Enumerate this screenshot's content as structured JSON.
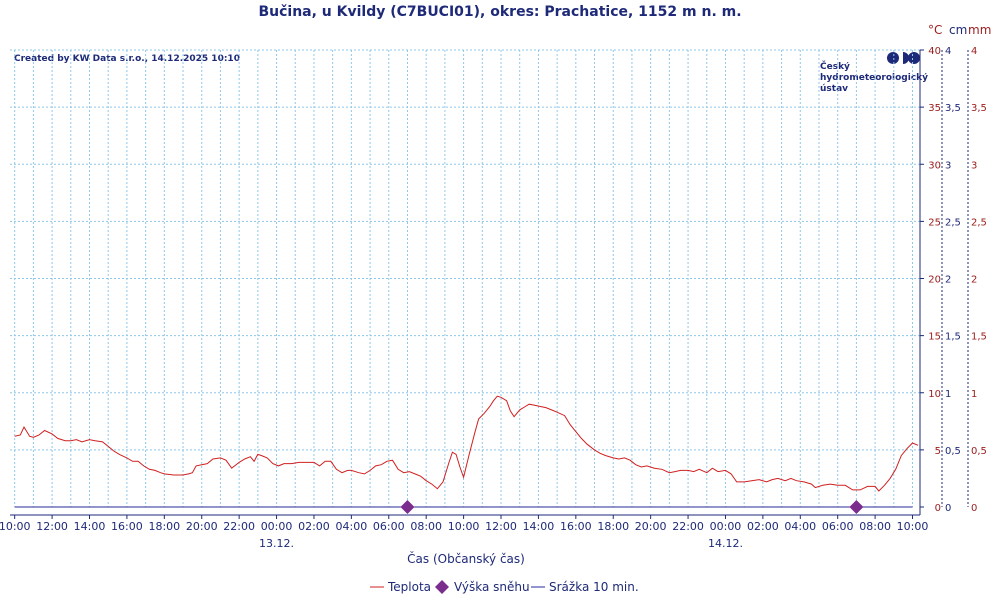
{
  "header": {
    "title": "Bučina, u Kvildy (C7BUCI01), okres: Prachatice, 1152 m n. m.",
    "credit": "Created by KW Data s.r.o., 14.12.2025 10:10"
  },
  "logo": {
    "lines": [
      "Český",
      "hydrometeorologický",
      "ústav"
    ],
    "color": "#1e2a78"
  },
  "colors": {
    "temperature": "#d02020",
    "snow": "#7b2d8e",
    "precip": "#2a2a9a",
    "grid": "#8fc8e8",
    "axis": "#1e2a78",
    "right_axis_text": "#9b1b1b"
  },
  "chart_data": {
    "type": "line",
    "title": "Bučina, u Kvildy (C7BUCI01), okres: Prachatice, 1152 m n. m.",
    "xlabel": "Čas (Občanský čas)",
    "x_range_hours": [
      -0.25,
      48.4
    ],
    "x_ticks": [
      {
        "h": 0,
        "label": "10:00"
      },
      {
        "h": 2,
        "label": "12:00"
      },
      {
        "h": 4,
        "label": "14:00"
      },
      {
        "h": 6,
        "label": "16:00"
      },
      {
        "h": 8,
        "label": "18:00"
      },
      {
        "h": 10,
        "label": "20:00"
      },
      {
        "h": 12,
        "label": "22:00"
      },
      {
        "h": 14,
        "label": "00:00"
      },
      {
        "h": 16,
        "label": "02:00"
      },
      {
        "h": 18,
        "label": "04:00"
      },
      {
        "h": 20,
        "label": "06:00"
      },
      {
        "h": 22,
        "label": "08:00"
      },
      {
        "h": 24,
        "label": "10:00"
      },
      {
        "h": 26,
        "label": "12:00"
      },
      {
        "h": 28,
        "label": "14:00"
      },
      {
        "h": 30,
        "label": "16:00"
      },
      {
        "h": 32,
        "label": "18:00"
      },
      {
        "h": 34,
        "label": "20:00"
      },
      {
        "h": 36,
        "label": "22:00"
      },
      {
        "h": 38,
        "label": "00:00"
      },
      {
        "h": 40,
        "label": "02:00"
      },
      {
        "h": 42,
        "label": "04:00"
      },
      {
        "h": 44,
        "label": "06:00"
      },
      {
        "h": 46,
        "label": "08:00"
      },
      {
        "h": 48,
        "label": "10:00"
      }
    ],
    "date_labels": [
      {
        "h": 14,
        "label": "13.12."
      },
      {
        "h": 38,
        "label": "14.12."
      }
    ],
    "y_axes": {
      "temperature": {
        "unit": "°C",
        "ticks": [
          "0",
          "5",
          "10",
          "15",
          "20",
          "25",
          "30",
          "35",
          "40"
        ],
        "range": [
          0,
          40
        ]
      },
      "snow": {
        "unit": "cm",
        "ticks": [
          "0",
          "0,5",
          "1",
          "1,5",
          "2",
          "2,5",
          "3",
          "3,5",
          "4"
        ],
        "range": [
          0,
          4
        ]
      },
      "precip": {
        "unit": "mm",
        "ticks": [
          "0",
          "0,5",
          "1",
          "1,5",
          "2",
          "2,5",
          "3",
          "3,5",
          "4"
        ],
        "range": [
          0,
          4
        ]
      }
    },
    "grid": true,
    "legend_position": "bottom-center",
    "series": [
      {
        "name": "Teplota",
        "kind": "line",
        "points": [
          [
            0.0,
            6.2
          ],
          [
            0.3,
            6.3
          ],
          [
            0.5,
            7.0
          ],
          [
            0.8,
            6.2
          ],
          [
            1.0,
            6.1
          ],
          [
            1.3,
            6.3
          ],
          [
            1.6,
            6.7
          ],
          [
            2.0,
            6.4
          ],
          [
            2.3,
            6.0
          ],
          [
            2.7,
            5.8
          ],
          [
            3.0,
            5.8
          ],
          [
            3.3,
            5.9
          ],
          [
            3.6,
            5.7
          ],
          [
            4.0,
            5.9
          ],
          [
            4.3,
            5.8
          ],
          [
            4.7,
            5.7
          ],
          [
            5.0,
            5.3
          ],
          [
            5.3,
            4.9
          ],
          [
            5.6,
            4.6
          ],
          [
            6.0,
            4.3
          ],
          [
            6.3,
            4.0
          ],
          [
            6.6,
            4.0
          ],
          [
            6.9,
            3.6
          ],
          [
            7.2,
            3.3
          ],
          [
            7.5,
            3.2
          ],
          [
            7.8,
            3.0
          ],
          [
            8.0,
            2.9
          ],
          [
            8.5,
            2.8
          ],
          [
            9.0,
            2.8
          ],
          [
            9.3,
            2.9
          ],
          [
            9.5,
            3.0
          ],
          [
            9.7,
            3.6
          ],
          [
            10.0,
            3.7
          ],
          [
            10.3,
            3.8
          ],
          [
            10.6,
            4.2
          ],
          [
            11.0,
            4.3
          ],
          [
            11.3,
            4.1
          ],
          [
            11.6,
            3.4
          ],
          [
            12.0,
            3.9
          ],
          [
            12.3,
            4.2
          ],
          [
            12.6,
            4.4
          ],
          [
            12.8,
            4.0
          ],
          [
            13.0,
            4.6
          ],
          [
            13.2,
            4.5
          ],
          [
            13.5,
            4.3
          ],
          [
            13.8,
            3.8
          ],
          [
            14.1,
            3.6
          ],
          [
            14.4,
            3.8
          ],
          [
            14.8,
            3.8
          ],
          [
            15.2,
            3.9
          ],
          [
            15.6,
            3.9
          ],
          [
            16.0,
            3.9
          ],
          [
            16.3,
            3.6
          ],
          [
            16.6,
            4.0
          ],
          [
            16.9,
            4.0
          ],
          [
            17.2,
            3.3
          ],
          [
            17.5,
            3.0
          ],
          [
            17.8,
            3.2
          ],
          [
            18.0,
            3.2
          ],
          [
            18.4,
            3.0
          ],
          [
            18.7,
            2.9
          ],
          [
            19.0,
            3.2
          ],
          [
            19.3,
            3.6
          ],
          [
            19.6,
            3.7
          ],
          [
            19.9,
            4.0
          ],
          [
            20.2,
            4.1
          ],
          [
            20.5,
            3.3
          ],
          [
            20.8,
            3.0
          ],
          [
            21.1,
            3.1
          ],
          [
            21.4,
            2.9
          ],
          [
            21.7,
            2.7
          ],
          [
            22.0,
            2.3
          ],
          [
            22.3,
            2.0
          ],
          [
            22.6,
            1.6
          ],
          [
            22.9,
            2.2
          ],
          [
            23.2,
            3.8
          ],
          [
            23.4,
            4.8
          ],
          [
            23.6,
            4.6
          ],
          [
            23.8,
            3.5
          ],
          [
            24.0,
            2.6
          ],
          [
            24.3,
            4.6
          ],
          [
            24.6,
            6.5
          ],
          [
            24.8,
            7.7
          ],
          [
            25.1,
            8.2
          ],
          [
            25.4,
            8.8
          ],
          [
            25.6,
            9.3
          ],
          [
            25.8,
            9.7
          ],
          [
            26.0,
            9.6
          ],
          [
            26.3,
            9.3
          ],
          [
            26.5,
            8.4
          ],
          [
            26.7,
            7.9
          ],
          [
            27.0,
            8.5
          ],
          [
            27.3,
            8.8
          ],
          [
            27.5,
            9.0
          ],
          [
            27.8,
            8.9
          ],
          [
            28.1,
            8.8
          ],
          [
            28.4,
            8.7
          ],
          [
            28.7,
            8.5
          ],
          [
            29.0,
            8.3
          ],
          [
            29.4,
            8.0
          ],
          [
            29.7,
            7.2
          ],
          [
            30.0,
            6.6
          ],
          [
            30.3,
            6.0
          ],
          [
            30.6,
            5.5
          ],
          [
            31.0,
            5.0
          ],
          [
            31.3,
            4.7
          ],
          [
            31.6,
            4.5
          ],
          [
            32.0,
            4.3
          ],
          [
            32.3,
            4.2
          ],
          [
            32.6,
            4.3
          ],
          [
            32.9,
            4.1
          ],
          [
            33.2,
            3.7
          ],
          [
            33.5,
            3.5
          ],
          [
            33.8,
            3.6
          ],
          [
            34.2,
            3.4
          ],
          [
            34.6,
            3.3
          ],
          [
            35.0,
            3.0
          ],
          [
            35.3,
            3.1
          ],
          [
            35.6,
            3.2
          ],
          [
            36.0,
            3.2
          ],
          [
            36.3,
            3.1
          ],
          [
            36.6,
            3.3
          ],
          [
            37.0,
            3.0
          ],
          [
            37.3,
            3.4
          ],
          [
            37.6,
            3.1
          ],
          [
            38.0,
            3.2
          ],
          [
            38.3,
            2.9
          ],
          [
            38.6,
            2.2
          ],
          [
            39.0,
            2.2
          ],
          [
            39.4,
            2.3
          ],
          [
            39.8,
            2.4
          ],
          [
            40.2,
            2.2
          ],
          [
            40.5,
            2.4
          ],
          [
            40.8,
            2.5
          ],
          [
            41.2,
            2.3
          ],
          [
            41.5,
            2.5
          ],
          [
            41.8,
            2.3
          ],
          [
            42.2,
            2.2
          ],
          [
            42.6,
            2.0
          ],
          [
            42.8,
            1.7
          ],
          [
            43.2,
            1.9
          ],
          [
            43.6,
            2.0
          ],
          [
            44.0,
            1.9
          ],
          [
            44.4,
            1.9
          ],
          [
            44.8,
            1.5
          ],
          [
            45.2,
            1.5
          ],
          [
            45.6,
            1.8
          ],
          [
            46.0,
            1.8
          ],
          [
            46.2,
            1.4
          ],
          [
            46.5,
            1.9
          ],
          [
            46.8,
            2.5
          ],
          [
            47.1,
            3.3
          ],
          [
            47.4,
            4.5
          ],
          [
            47.7,
            5.1
          ],
          [
            48.0,
            5.6
          ],
          [
            48.3,
            5.4
          ]
        ]
      },
      {
        "name": "Výška sněhu",
        "kind": "markers",
        "points": [
          [
            21.0,
            0
          ],
          [
            45.0,
            0
          ]
        ]
      },
      {
        "name": "Srážka 10 min.",
        "kind": "line",
        "points": [
          [
            0.0,
            0
          ],
          [
            48.0,
            0
          ]
        ]
      }
    ]
  }
}
